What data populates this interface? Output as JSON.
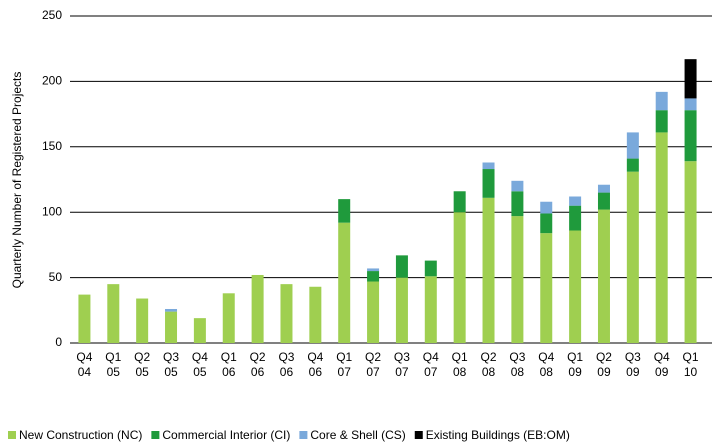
{
  "chart_data": {
    "type": "stacked_bar",
    "y_label": "Quarterly Number of Registered Projects",
    "categories": [
      [
        "Q4",
        "04"
      ],
      [
        "Q1",
        "05"
      ],
      [
        "Q2",
        "05"
      ],
      [
        "Q3",
        "05"
      ],
      [
        "Q4",
        "05"
      ],
      [
        "Q1",
        "06"
      ],
      [
        "Q2",
        "06"
      ],
      [
        "Q3",
        "06"
      ],
      [
        "Q4",
        "06"
      ],
      [
        "Q1",
        "07"
      ],
      [
        "Q2",
        "07"
      ],
      [
        "Q3",
        "07"
      ],
      [
        "Q4",
        "07"
      ],
      [
        "Q1",
        "08"
      ],
      [
        "Q2",
        "08"
      ],
      [
        "Q3",
        "08"
      ],
      [
        "Q4",
        "08"
      ],
      [
        "Q1",
        "09"
      ],
      [
        "Q2",
        "09"
      ],
      [
        "Q3",
        "09"
      ],
      [
        "Q4",
        "09"
      ],
      [
        "Q1",
        "10"
      ]
    ],
    "series": [
      {
        "name": "New Construction (NC)",
        "color": "#9fcf50",
        "values": [
          37,
          45,
          34,
          24,
          19,
          38,
          52,
          45,
          43,
          92,
          47,
          50,
          51,
          100,
          111,
          97,
          84,
          86,
          102,
          131,
          161,
          139
        ]
      },
      {
        "name": "Commercial Interior (CI)",
        "color": "#1f9a3c",
        "values": [
          null,
          null,
          null,
          null,
          null,
          null,
          null,
          null,
          null,
          18,
          8,
          17,
          12,
          16,
          22,
          19,
          15,
          19,
          13,
          10,
          17,
          39
        ]
      },
      {
        "name": "Core & Shell (CS)",
        "color": "#7aa9db",
        "values": [
          null,
          null,
          null,
          2,
          null,
          null,
          null,
          null,
          null,
          null,
          2,
          null,
          null,
          null,
          5,
          8,
          9,
          7,
          6,
          20,
          14,
          9
        ]
      },
      {
        "name": "Existing Buildings (EB:OM)",
        "color": "#000000",
        "values": [
          null,
          null,
          null,
          null,
          null,
          null,
          null,
          null,
          null,
          null,
          null,
          null,
          null,
          null,
          null,
          null,
          null,
          null,
          null,
          null,
          null,
          30
        ]
      }
    ],
    "ylim": [
      0,
      250
    ],
    "yticks": [
      0,
      50,
      100,
      150,
      200,
      250
    ],
    "grid": true,
    "legend": "bottom"
  }
}
